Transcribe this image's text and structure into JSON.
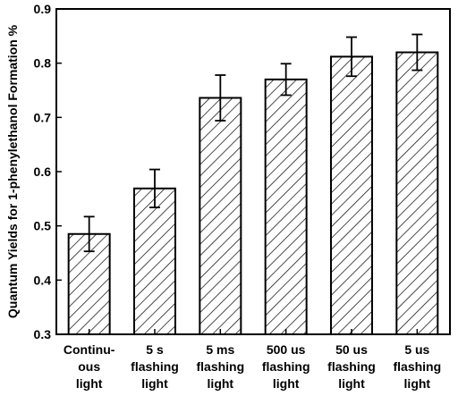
{
  "chart_data": {
    "type": "bar",
    "ylabel": "Quantum Yields for 1-phenylethanol Formation %",
    "xlabel": "",
    "ylim": [
      0.3,
      0.9
    ],
    "yticks": [
      "0.3",
      "0.4",
      "0.5",
      "0.6",
      "0.7",
      "0.8",
      "0.9"
    ],
    "categories": [
      [
        "Continu-",
        "ous",
        "light"
      ],
      [
        "5 s",
        "flashing",
        "light"
      ],
      [
        "5 ms",
        "flashing",
        "light"
      ],
      [
        "500 us",
        "flashing",
        "light"
      ],
      [
        "50 us",
        "flashing",
        "light"
      ],
      [
        "5 us",
        "flashing",
        "light"
      ]
    ],
    "values": [
      0.485,
      0.569,
      0.736,
      0.77,
      0.812,
      0.82
    ],
    "errors": [
      0.032,
      0.035,
      0.042,
      0.029,
      0.036,
      0.033
    ],
    "bar_fill": "diagonal hatch",
    "bar_color": "#000000",
    "grid": false,
    "legend": "none"
  }
}
